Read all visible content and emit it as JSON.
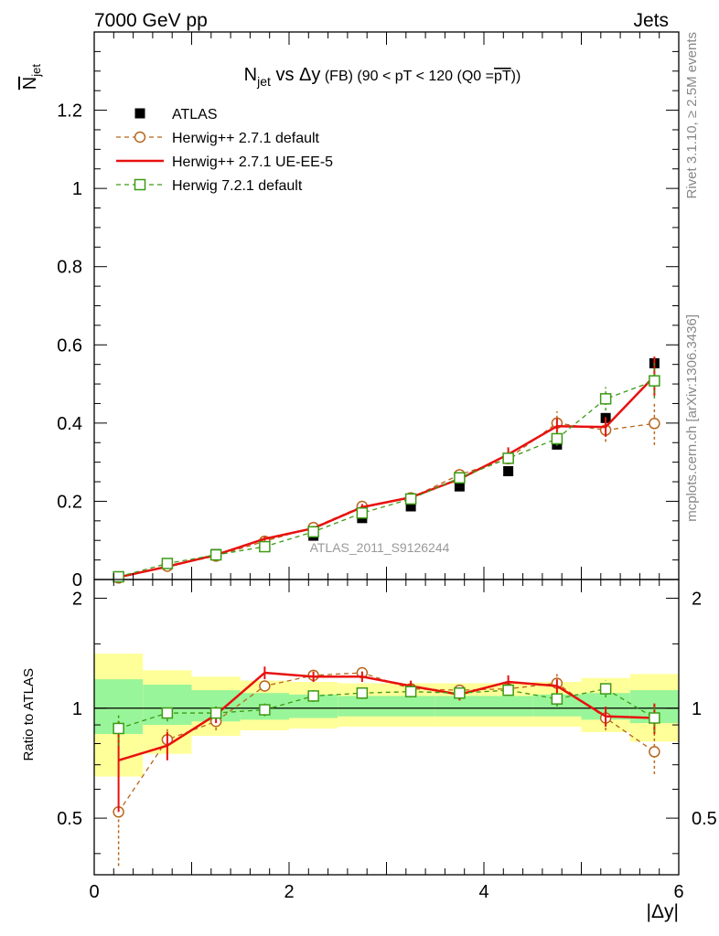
{
  "header": {
    "left": "7000 GeV pp",
    "right": "Jets",
    "side_top": "Rivet 3.1.10, ≥ 2.5M events",
    "side_bottom": "mcplots.cern.ch [arXiv:1306.3436]",
    "watermark": "ATLAS_2011_S9126244"
  },
  "chart_data": [
    {
      "type": "scatter",
      "panel": "main",
      "title_parts": {
        "n": "N",
        "jet": "jet",
        "vs": " vs ",
        "dy": "Δy",
        "fb": " (FB) ",
        "cut": "(90 < pT < 120 (Q0 =",
        "ptbar": "pT",
        "close": "))"
      },
      "ylabel_parts": {
        "n": "N",
        "jet": "jet"
      },
      "xlim": [
        0,
        6
      ],
      "ylim": [
        0,
        1.4
      ],
      "y_ticks": [
        0,
        0.2,
        0.4,
        0.6,
        0.8,
        1,
        1.2
      ],
      "y_tick_labels": [
        "0",
        "0.2",
        "0.4",
        "0.6",
        "0.8",
        "1",
        "1.2"
      ],
      "legend_position": "top-left",
      "x": [
        0.25,
        0.75,
        1.25,
        1.75,
        2.25,
        2.75,
        3.25,
        3.75,
        4.25,
        4.75,
        5.25,
        5.75
      ],
      "series": [
        {
          "name": "ATLAS",
          "color": "#000000",
          "marker": "filled-square",
          "values": [
            0.008,
            0.042,
            0.065,
            0.085,
            0.112,
            0.157,
            0.187,
            0.238,
            0.277,
            0.345,
            0.413,
            0.553
          ]
        },
        {
          "name": "Herwig++ 2.7.1 default",
          "color": "#b8651b",
          "marker": "open-circle",
          "dash": "dashed",
          "values": [
            0.004,
            0.034,
            0.06,
            0.098,
            0.133,
            0.187,
            0.209,
            0.268,
            0.309,
            0.4,
            0.382,
            0.399
          ],
          "errors": [
            0.003,
            0.004,
            0.004,
            0.005,
            0.006,
            0.008,
            0.008,
            0.009,
            0.012,
            0.03,
            0.03,
            0.055
          ]
        },
        {
          "name": "Herwig++ 2.7.1 UE-EE-5",
          "color": "#e8110f",
          "marker": "line",
          "dash": "solid",
          "values": [
            0.006,
            0.033,
            0.063,
            0.104,
            0.131,
            0.185,
            0.21,
            0.257,
            0.32,
            0.392,
            0.39,
            0.52
          ],
          "errors": [
            0.002,
            0.004,
            0.004,
            0.005,
            0.006,
            0.008,
            0.009,
            0.011,
            0.018,
            0.02,
            0.025,
            0.05
          ]
        },
        {
          "name": "Herwig 7.2.1 default",
          "color": "#3c9a15",
          "marker": "open-square",
          "dash": "dashed",
          "values": [
            0.007,
            0.041,
            0.063,
            0.084,
            0.122,
            0.17,
            0.206,
            0.26,
            0.31,
            0.36,
            0.462,
            0.508
          ],
          "errors": [
            0.002,
            0.004,
            0.004,
            0.004,
            0.006,
            0.007,
            0.008,
            0.009,
            0.012,
            0.018,
            0.03,
            0.045
          ]
        }
      ]
    },
    {
      "type": "line",
      "panel": "ratio",
      "ylabel": "Ratio to ATLAS",
      "xlabel_parts": {
        "open": "|",
        "dy": "Δy",
        "close": "|"
      },
      "xlim": [
        0,
        6
      ],
      "ylim": [
        0.35,
        2.25
      ],
      "x_ticks": [
        0,
        2,
        4,
        6
      ],
      "x_tick_labels": [
        "0",
        "2",
        "4",
        "6"
      ],
      "y_ticks": [
        0.5,
        1,
        2
      ],
      "y_tick_labels": [
        "0.5",
        "1",
        "2"
      ],
      "bands": {
        "bins": [
          [
            0,
            0.5
          ],
          [
            0.5,
            1.0
          ],
          [
            1.0,
            1.5
          ],
          [
            1.5,
            2.0
          ],
          [
            2.0,
            2.5
          ],
          [
            2.5,
            3.0
          ],
          [
            3.0,
            3.5
          ],
          [
            3.5,
            4.0
          ],
          [
            4.0,
            4.5
          ],
          [
            4.5,
            5.0
          ],
          [
            5.0,
            5.5
          ],
          [
            5.5,
            6.0
          ]
        ],
        "inner": [
          [
            0.85,
            1.2
          ],
          [
            0.9,
            1.16
          ],
          [
            0.92,
            1.12
          ],
          [
            0.93,
            1.1
          ],
          [
            0.94,
            1.09
          ],
          [
            0.95,
            1.08
          ],
          [
            0.95,
            1.08
          ],
          [
            0.95,
            1.08
          ],
          [
            0.95,
            1.08
          ],
          [
            0.95,
            1.09
          ],
          [
            0.93,
            1.1
          ],
          [
            0.91,
            1.12
          ]
        ],
        "outer": [
          [
            0.65,
            1.41
          ],
          [
            0.75,
            1.27
          ],
          [
            0.84,
            1.22
          ],
          [
            0.87,
            1.19
          ],
          [
            0.88,
            1.18
          ],
          [
            0.89,
            1.17
          ],
          [
            0.89,
            1.17
          ],
          [
            0.89,
            1.17
          ],
          [
            0.89,
            1.17
          ],
          [
            0.89,
            1.18
          ],
          [
            0.86,
            1.21
          ],
          [
            0.81,
            1.24
          ]
        ],
        "inner_color": "#99f599",
        "outer_color": "#ffff99"
      },
      "x": [
        0.25,
        0.75,
        1.25,
        1.75,
        2.25,
        2.75,
        3.25,
        3.75,
        4.25,
        4.75,
        5.25,
        5.75
      ],
      "series": [
        {
          "name": "Herwig++ 2.7.1 default",
          "color": "#b8651b",
          "marker": "open-circle",
          "dash": "dashed",
          "values": [
            0.52,
            0.82,
            0.92,
            1.15,
            1.23,
            1.25,
            1.13,
            1.12,
            1.13,
            1.17,
            0.94,
            0.76
          ],
          "errors": [
            0.15,
            0.07,
            0.05,
            0.04,
            0.04,
            0.04,
            0.04,
            0.04,
            0.04,
            0.07,
            0.07,
            0.1
          ]
        },
        {
          "name": "Herwig++ 2.7.1 UE-EE-5",
          "color": "#e8110f",
          "marker": "line",
          "dash": "solid",
          "values": [
            0.72,
            0.79,
            0.96,
            1.25,
            1.22,
            1.22,
            1.15,
            1.09,
            1.18,
            1.15,
            0.95,
            0.94
          ],
          "errors": [
            0.2,
            0.07,
            0.05,
            0.05,
            0.04,
            0.04,
            0.04,
            0.04,
            0.05,
            0.05,
            0.06,
            0.09
          ]
        },
        {
          "name": "Herwig 7.2.1 default",
          "color": "#3c9a15",
          "marker": "open-square",
          "dash": "dashed",
          "values": [
            0.88,
            0.97,
            0.97,
            0.99,
            1.08,
            1.1,
            1.11,
            1.1,
            1.12,
            1.06,
            1.13,
            0.94
          ],
          "errors": [
            0.09,
            0.05,
            0.04,
            0.04,
            0.04,
            0.04,
            0.04,
            0.04,
            0.04,
            0.05,
            0.06,
            0.08
          ]
        }
      ]
    }
  ]
}
